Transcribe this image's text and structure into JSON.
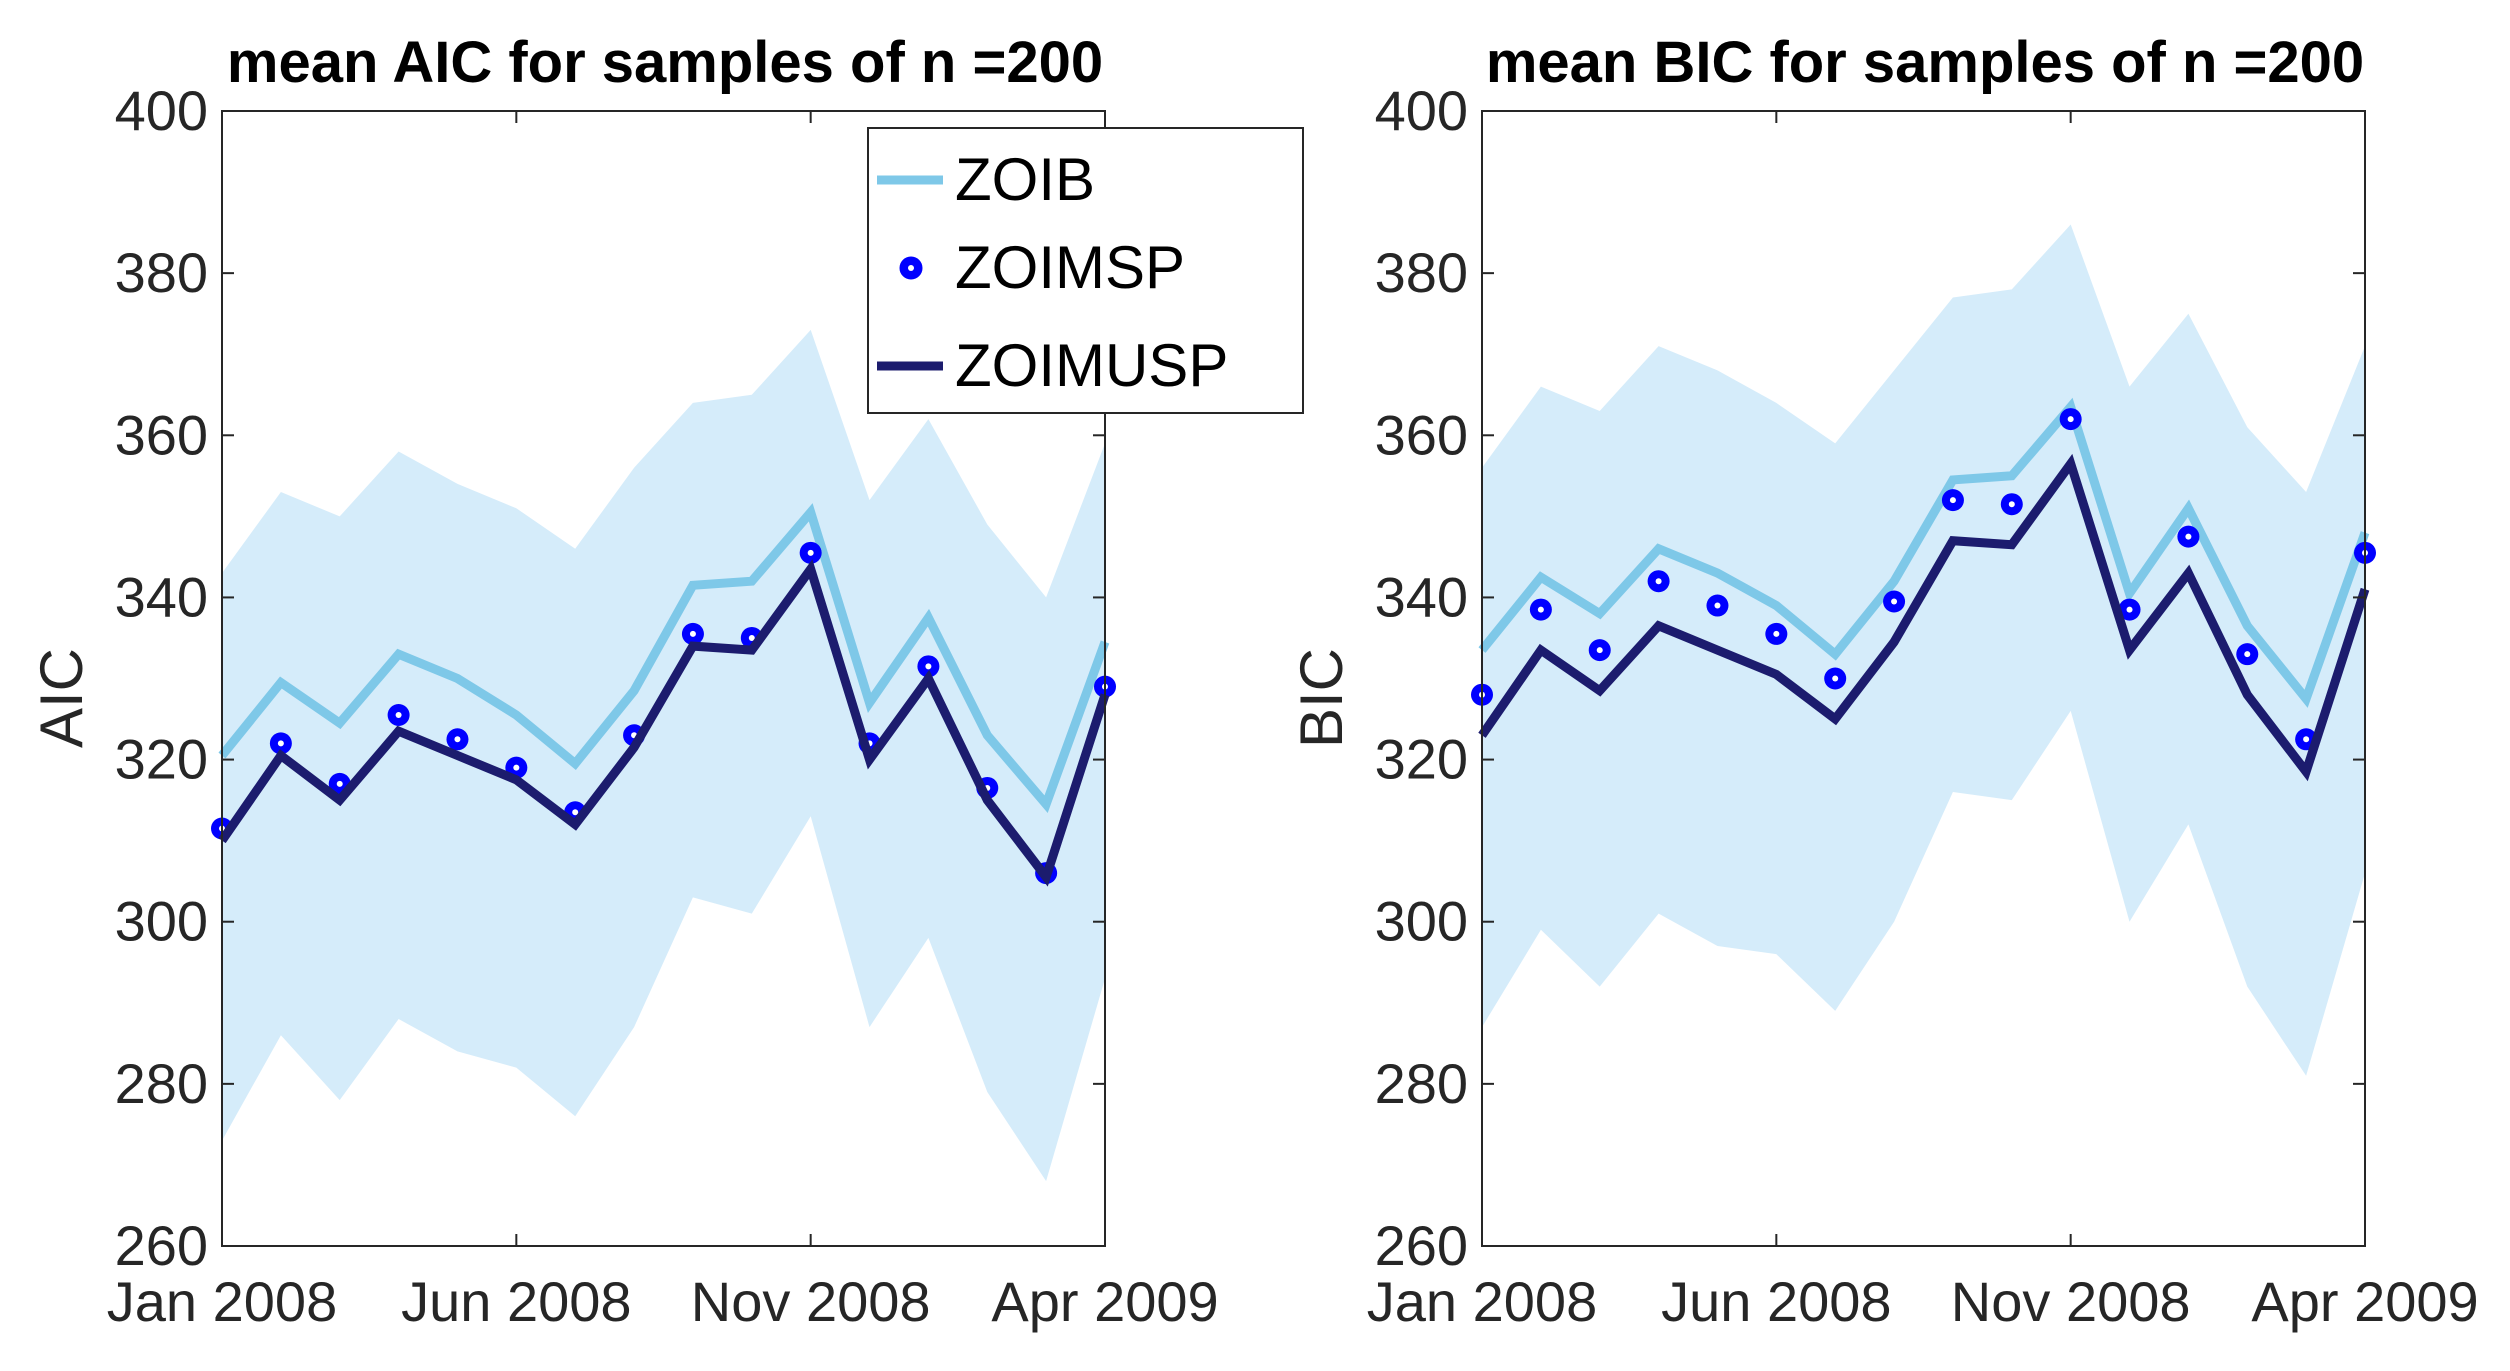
{
  "chart_data": [
    {
      "type": "line",
      "title": "mean AIC for samples of n =200",
      "xlabel": "",
      "ylabel": "AIC",
      "ylim": [
        260,
        400
      ],
      "yticks": [
        260,
        280,
        300,
        320,
        340,
        360,
        380,
        400
      ],
      "xticks": [
        {
          "index": 0,
          "label": "Jan 2008"
        },
        {
          "index": 5,
          "label": "Jun 2008"
        },
        {
          "index": 10,
          "label": "Nov 2008"
        },
        {
          "index": 15,
          "label": "Apr 2009"
        }
      ],
      "band": {
        "upper": [
          343,
          353,
          350,
          358,
          354,
          351,
          346,
          356,
          364,
          365,
          373,
          352,
          362,
          349,
          340,
          359
        ],
        "lower": [
          273,
          286,
          278,
          288,
          284,
          282,
          276,
          287,
          303,
          301,
          313,
          287,
          298,
          279,
          268,
          293
        ]
      },
      "series": [
        {
          "name": "ZOIB",
          "style": "line",
          "color": "#7ec8e8",
          "values": [
            320.5,
            329.5,
            324.5,
            333,
            330,
            325.5,
            319.5,
            328.5,
            341.5,
            342,
            350.5,
            327,
            337.5,
            323,
            314.5,
            334.5
          ]
        },
        {
          "name": "ZOIMSP",
          "style": "dots",
          "color": "#0000ff",
          "values": [
            311.5,
            322,
            317,
            325.5,
            322.5,
            319,
            313.5,
            323,
            335.5,
            335,
            345.5,
            322,
            331.5,
            316.5,
            306,
            329
          ]
        },
        {
          "name": "ZOIMUSP",
          "style": "line",
          "color": "#1c1c6e",
          "values": [
            310,
            320.5,
            315,
            323.5,
            320.5,
            317.5,
            312,
            321.5,
            334,
            333.5,
            343.5,
            320,
            330,
            315,
            305.5,
            328
          ]
        }
      ]
    },
    {
      "type": "line",
      "title": "mean BIC for samples of n =200",
      "xlabel": "",
      "ylabel": "BIC",
      "ylim": [
        260,
        400
      ],
      "yticks": [
        260,
        280,
        300,
        320,
        340,
        360,
        380,
        400
      ],
      "xticks": [
        {
          "index": 0,
          "label": "Jan 2008"
        },
        {
          "index": 5,
          "label": "Jun 2008"
        },
        {
          "index": 10,
          "label": "Nov 2008"
        },
        {
          "index": 15,
          "label": "Apr 2009"
        }
      ],
      "band": {
        "upper": [
          356,
          366,
          363,
          371,
          368,
          364,
          359,
          368,
          377,
          378,
          386,
          366,
          375,
          361,
          353,
          371
        ],
        "lower": [
          287,
          299,
          292,
          301,
          297,
          296,
          289,
          300,
          316,
          315,
          326,
          300,
          312,
          292,
          281,
          306
        ]
      },
      "series": [
        {
          "name": "ZOIB",
          "style": "line",
          "color": "#7ec8e8",
          "values": [
            333.5,
            342.5,
            338,
            346,
            343,
            339,
            333,
            342,
            354.5,
            355,
            363.5,
            340.5,
            351,
            336.5,
            327.5,
            348
          ]
        },
        {
          "name": "ZOIMSP",
          "style": "dots",
          "color": "#0000ff",
          "values": [
            328,
            338.5,
            333.5,
            342,
            339,
            335.5,
            330,
            339.5,
            352,
            351.5,
            362,
            338.5,
            347.5,
            333,
            322.5,
            345.5
          ]
        },
        {
          "name": "ZOIMUSP",
          "style": "line",
          "color": "#1c1c6e",
          "values": [
            323,
            333.5,
            328.5,
            336.5,
            333.5,
            330.5,
            325,
            334.5,
            347,
            346.5,
            356.5,
            333.5,
            343,
            328,
            318.5,
            341
          ]
        }
      ]
    }
  ],
  "legend": {
    "location": "top-right of first panel",
    "items": [
      "ZOIB",
      "ZOIMSP",
      "ZOIMUSP"
    ]
  },
  "colors": {
    "band_fill": "#d5ecfa",
    "axis": "#262626"
  }
}
